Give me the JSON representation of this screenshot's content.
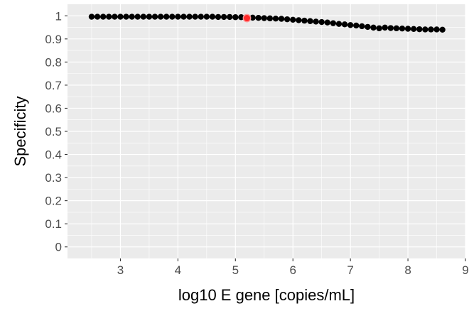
{
  "chart_data": {
    "type": "scatter",
    "xlabel": "log10 E gene [copies/mL]",
    "ylabel": "Specificity",
    "xlim": [
      2.08,
      9.0
    ],
    "ylim": [
      -0.05,
      1.05
    ],
    "x_ticks": [
      3,
      4,
      5,
      6,
      7,
      8,
      9
    ],
    "x_tick_labels": [
      "3",
      "4",
      "5",
      "6",
      "7",
      "8",
      "9"
    ],
    "y_ticks": [
      0,
      0.1,
      0.2,
      0.3,
      0.4,
      0.5,
      0.6,
      0.7,
      0.8,
      0.9,
      1
    ],
    "y_tick_labels": [
      "0",
      "0.1",
      "0.2",
      "0.3",
      "0.4",
      "0.5",
      "0.6",
      "0.7",
      "0.8",
      "0.9",
      "1"
    ],
    "grid": true,
    "panel_background": "#ebebeb",
    "grid_color": "#ffffff",
    "point_color": "#000000",
    "highlight_color": "#ff2a2a",
    "series": [
      {
        "x": [
          2.5,
          2.6,
          2.7,
          2.8,
          2.9,
          3.0,
          3.1,
          3.2,
          3.3,
          3.4,
          3.5,
          3.6,
          3.7,
          3.8,
          3.9,
          4.0,
          4.1,
          4.2,
          4.3,
          4.4,
          4.5,
          4.6,
          4.7,
          4.8,
          4.9,
          5.0,
          5.1,
          5.2,
          5.3,
          5.4,
          5.5,
          5.6,
          5.7,
          5.8,
          5.9,
          6.0,
          6.1,
          6.2,
          6.3,
          6.4,
          6.5,
          6.6,
          6.7,
          6.8,
          6.9,
          7.0,
          7.1,
          7.2,
          7.3,
          7.4,
          7.5,
          7.6,
          7.7,
          7.8,
          7.9,
          8.0,
          8.1,
          8.2,
          8.3,
          8.4,
          8.5,
          8.6
        ],
        "y": [
          0.996,
          0.996,
          0.996,
          0.996,
          0.996,
          0.996,
          0.996,
          0.996,
          0.996,
          0.996,
          0.996,
          0.996,
          0.996,
          0.996,
          0.996,
          0.996,
          0.996,
          0.996,
          0.996,
          0.996,
          0.996,
          0.996,
          0.995,
          0.995,
          0.995,
          0.994,
          0.994,
          0.993,
          0.992,
          0.991,
          0.99,
          0.989,
          0.988,
          0.987,
          0.985,
          0.983,
          0.981,
          0.979,
          0.977,
          0.975,
          0.973,
          0.971,
          0.968,
          0.965,
          0.963,
          0.96,
          0.958,
          0.955,
          0.952,
          0.949,
          0.946,
          0.949,
          0.947,
          0.946,
          0.945,
          0.944,
          0.943,
          0.942,
          0.941,
          0.941,
          0.941,
          0.94
        ]
      }
    ],
    "highlight": {
      "x": 5.2,
      "y": 0.99
    }
  }
}
